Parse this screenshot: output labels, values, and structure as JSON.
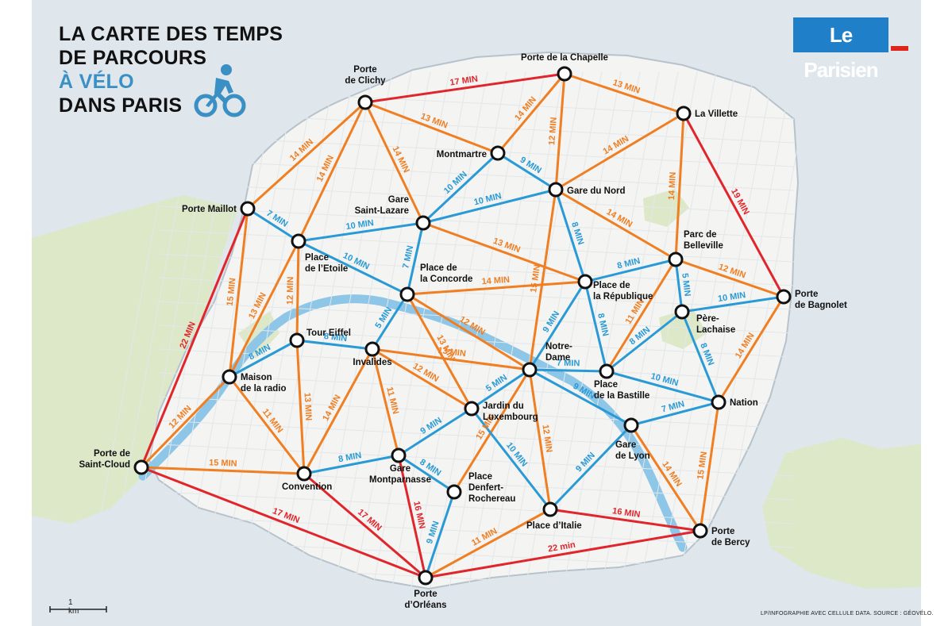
{
  "title": {
    "line1": "LA CARTE DES TEMPS",
    "line2": "DE PARCOURS",
    "line3": "À VÉLO",
    "line4": "DANS PARIS"
  },
  "logo_text": "Le Parisien",
  "scale_label": "1 km",
  "credit": "LP/INFOGRAPHIE AVEC CELLULE DATA. SOURCE : GÉOVÉLO.",
  "colors": {
    "red": "#e0262c",
    "orange": "#f07e22",
    "blue": "#2a9ad6",
    "water": "#8ec6e8",
    "land": "#f4f4f2",
    "park": "#dce8c8",
    "sea": "#dfe6ec"
  },
  "icons": [
    "cyclist-icon"
  ],
  "nodes": [
    {
      "id": "porte-de-clichy",
      "label": [
        "Porte",
        "de Clichy"
      ]
    },
    {
      "id": "porte-de-la-chapelle",
      "label": [
        "Porte de la Chapelle"
      ]
    },
    {
      "id": "la-villette",
      "label": [
        "La Villette"
      ]
    },
    {
      "id": "montmartre",
      "label": [
        "Montmartre"
      ]
    },
    {
      "id": "gare-du-nord",
      "label": [
        "Gare du Nord"
      ]
    },
    {
      "id": "porte-maillot",
      "label": [
        "Porte Maillot"
      ]
    },
    {
      "id": "gare-saint-lazare",
      "label": [
        "Gare",
        "Saint-Lazare"
      ]
    },
    {
      "id": "place-de-letoile",
      "label": [
        "Place",
        "de l’Etoile"
      ]
    },
    {
      "id": "place-de-la-concorde",
      "label": [
        "Place de",
        "la Concorde"
      ]
    },
    {
      "id": "parc-de-belleville",
      "label": [
        "Parc de",
        "Belleville"
      ]
    },
    {
      "id": "place-de-la-republique",
      "label": [
        "Place de",
        "la République"
      ]
    },
    {
      "id": "porte-de-bagnolet",
      "label": [
        "Porte",
        "de Bagnolet"
      ]
    },
    {
      "id": "pere-lachaise",
      "label": [
        "Père-",
        "Lachaise"
      ]
    },
    {
      "id": "tour-eiffel",
      "label": [
        "Tour Eiffel"
      ]
    },
    {
      "id": "invalides",
      "label": [
        "Invalides"
      ]
    },
    {
      "id": "notre-dame",
      "label": [
        "Notre-",
        "Dame"
      ]
    },
    {
      "id": "place-de-la-bastille",
      "label": [
        "Place",
        "de la Bastille"
      ]
    },
    {
      "id": "maison-de-la-radio",
      "label": [
        "Maison",
        "de la radio"
      ]
    },
    {
      "id": "nation",
      "label": [
        "Nation"
      ]
    },
    {
      "id": "jardin-du-luxembourg",
      "label": [
        "Jardin du",
        "Luxembourg"
      ]
    },
    {
      "id": "gare-de-lyon",
      "label": [
        "Gare",
        "de Lyon"
      ]
    },
    {
      "id": "porte-de-saint-cloud",
      "label": [
        "Porte de",
        "Saint-Cloud"
      ]
    },
    {
      "id": "gare-montparnasse",
      "label": [
        "Gare",
        "Montparnasse"
      ]
    },
    {
      "id": "convention",
      "label": [
        "Convention"
      ]
    },
    {
      "id": "place-denfert-rochereau",
      "label": [
        "Place",
        "Denfert-",
        "Rochereau"
      ]
    },
    {
      "id": "place-ditalie",
      "label": [
        "Place d’Italie"
      ]
    },
    {
      "id": "porte-de-bercy",
      "label": [
        "Porte",
        "de Bercy"
      ]
    },
    {
      "id": "porte-dorleans",
      "label": [
        "Porte",
        "d’Orléans"
      ]
    }
  ],
  "edges": [
    {
      "from": "porte-de-clichy",
      "to": "porte-de-la-chapelle",
      "color": "red",
      "label": "17 MIN"
    },
    {
      "from": "porte-de-la-chapelle",
      "to": "la-villette",
      "color": "orange",
      "label": "13 MIN"
    },
    {
      "from": "la-villette",
      "to": "porte-de-bagnolet",
      "color": "red",
      "label": "19 MIN"
    },
    {
      "from": "porte-maillot",
      "to": "porte-de-clichy",
      "color": "orange",
      "label": "14 MIN"
    },
    {
      "from": "porte-maillot",
      "to": "porte-de-saint-cloud",
      "color": "red",
      "label": "22 MIN"
    },
    {
      "from": "porte-de-saint-cloud",
      "to": "porte-dorleans",
      "color": "red",
      "label": "17 MIN"
    },
    {
      "from": "porte-dorleans",
      "to": "porte-de-bercy",
      "color": "red",
      "label": "22 min"
    },
    {
      "from": "porte-de-clichy",
      "to": "montmartre",
      "color": "orange",
      "label": "13 MIN"
    },
    {
      "from": "porte-de-la-chapelle",
      "to": "montmartre",
      "color": "orange",
      "label": "14 MIN"
    },
    {
      "from": "porte-de-la-chapelle",
      "to": "gare-du-nord",
      "color": "orange",
      "label": "12 MIN"
    },
    {
      "from": "la-villette",
      "to": "gare-du-nord",
      "color": "orange",
      "label": "14 MIN"
    },
    {
      "from": "la-villette",
      "to": "parc-de-belleville",
      "color": "orange",
      "label": "14 MIN"
    },
    {
      "from": "montmartre",
      "to": "gare-du-nord",
      "color": "blue",
      "label": "9 MIN"
    },
    {
      "from": "montmartre",
      "to": "gare-saint-lazare",
      "color": "blue",
      "label": "10 MIN"
    },
    {
      "from": "gare-saint-lazare",
      "to": "gare-du-nord",
      "color": "blue",
      "label": "10 MIN"
    },
    {
      "from": "porte-de-clichy",
      "to": "gare-saint-lazare",
      "color": "orange",
      "label": "14 MIN"
    },
    {
      "from": "porte-de-clichy",
      "to": "place-de-letoile",
      "color": "orange",
      "label": "14 MIN"
    },
    {
      "from": "porte-maillot",
      "to": "place-de-letoile",
      "color": "blue",
      "label": "7 MIN"
    },
    {
      "from": "place-de-letoile",
      "to": "gare-saint-lazare",
      "color": "blue",
      "label": "10 MIN"
    },
    {
      "from": "place-de-letoile",
      "to": "place-de-la-concorde",
      "color": "blue",
      "label": "10 MIN"
    },
    {
      "from": "gare-saint-lazare",
      "to": "place-de-la-concorde",
      "color": "blue",
      "label": "7 MIN"
    },
    {
      "from": "gare-saint-lazare",
      "to": "place-de-la-republique",
      "color": "orange",
      "label": "13 MIN"
    },
    {
      "from": "gare-du-nord",
      "to": "place-de-la-republique",
      "color": "blue",
      "label": "8 MIN"
    },
    {
      "from": "gare-du-nord",
      "to": "notre-dame",
      "color": "orange",
      "label": "15 MIN"
    },
    {
      "from": "gare-du-nord",
      "to": "parc-de-belleville",
      "color": "orange",
      "label": "14 MIN"
    },
    {
      "from": "parc-de-belleville",
      "to": "place-de-la-republique",
      "color": "blue",
      "label": "8 MIN"
    },
    {
      "from": "parc-de-belleville",
      "to": "porte-de-bagnolet",
      "color": "orange",
      "label": "12 MIN"
    },
    {
      "from": "parc-de-belleville",
      "to": "pere-lachaise",
      "color": "blue",
      "label": "5 MIN"
    },
    {
      "from": "pere-lachaise",
      "to": "porte-de-bagnolet",
      "color": "blue",
      "label": "10 MIN"
    },
    {
      "from": "place-de-la-concorde",
      "to": "place-de-la-republique",
      "color": "orange",
      "label": "14 MIN"
    },
    {
      "from": "place-de-la-republique",
      "to": "notre-dame",
      "color": "blue",
      "label": "9 MIN"
    },
    {
      "from": "place-de-la-republique",
      "to": "place-de-la-bastille",
      "color": "blue",
      "label": "8 MIN"
    },
    {
      "from": "parc-de-belleville",
      "to": "place-de-la-bastille",
      "color": "orange",
      "label": "11 MIN"
    },
    {
      "from": "pere-lachaise",
      "to": "place-de-la-bastille",
      "color": "blue",
      "label": "8 MIN"
    },
    {
      "from": "pere-lachaise",
      "to": "nation",
      "color": "blue",
      "label": "8 MIN"
    },
    {
      "from": "porte-de-bagnolet",
      "to": "nation",
      "color": "orange",
      "label": "14 MIN"
    },
    {
      "from": "place-de-letoile",
      "to": "tour-eiffel",
      "color": "orange",
      "label": "12 MIN"
    },
    {
      "from": "place-de-letoile",
      "to": "maison-de-la-radio",
      "color": "orange",
      "label": "13 MIN"
    },
    {
      "from": "porte-maillot",
      "to": "maison-de-la-radio",
      "color": "orange",
      "label": "15 MIN"
    },
    {
      "from": "tour-eiffel",
      "to": "maison-de-la-radio",
      "color": "blue",
      "label": "8 MIN"
    },
    {
      "from": "tour-eiffel",
      "to": "invalides",
      "color": "blue",
      "label": "8 MIN"
    },
    {
      "from": "place-de-la-concorde",
      "to": "invalides",
      "color": "blue",
      "label": "5 MIN"
    },
    {
      "from": "place-de-la-concorde",
      "to": "notre-dame",
      "color": "orange",
      "label": "12 MIN"
    },
    {
      "from": "place-de-la-concorde",
      "to": "jardin-du-luxembourg",
      "color": "orange",
      "label": "13 MIN"
    },
    {
      "from": "invalides",
      "to": "notre-dame",
      "color": "orange",
      "label": "13 MIN"
    },
    {
      "from": "invalides",
      "to": "jardin-du-luxembourg",
      "color": "orange",
      "label": "12 MIN"
    },
    {
      "from": "invalides",
      "to": "gare-montparnasse",
      "color": "orange",
      "label": "11 MIN"
    },
    {
      "from": "invalides",
      "to": "convention",
      "color": "orange",
      "label": "14 MIN"
    },
    {
      "from": "tour-eiffel",
      "to": "convention",
      "color": "orange",
      "label": "13 MIN"
    },
    {
      "from": "maison-de-la-radio",
      "to": "convention",
      "color": "orange",
      "label": "11 MIN"
    },
    {
      "from": "maison-de-la-radio",
      "to": "porte-de-saint-cloud",
      "color": "orange",
      "label": "12 MIN"
    },
    {
      "from": "porte-de-saint-cloud",
      "to": "convention",
      "color": "orange",
      "label": "15 MIN"
    },
    {
      "from": "notre-dame",
      "to": "jardin-du-luxembourg",
      "color": "blue",
      "label": "5 MIN"
    },
    {
      "from": "notre-dame",
      "to": "place-de-la-bastille",
      "color": "blue",
      "label": "7 MIN"
    },
    {
      "from": "notre-dame",
      "to": "gare-de-lyon",
      "color": "blue",
      "label": "9 MIN"
    },
    {
      "from": "place-de-la-bastille",
      "to": "nation",
      "color": "blue",
      "label": "10 MIN"
    },
    {
      "from": "gare-de-lyon",
      "to": "nation",
      "color": "blue",
      "label": "7 MIN"
    },
    {
      "from": "notre-dame",
      "to": "place-denfert-rochereau",
      "color": "orange",
      "label": "15 MIN"
    },
    {
      "from": "notre-dame",
      "to": "place-ditalie",
      "color": "orange",
      "label": "12 MIN"
    },
    {
      "from": "jardin-du-luxembourg",
      "to": "gare-montparnasse",
      "color": "blue",
      "label": "9 MIN"
    },
    {
      "from": "jardin-du-luxembourg",
      "to": "place-ditalie",
      "color": "blue",
      "label": "10 MIN"
    },
    {
      "from": "gare-montparnasse",
      "to": "convention",
      "color": "blue",
      "label": "8 MIN"
    },
    {
      "from": "gare-montparnasse",
      "to": "place-denfert-rochereau",
      "color": "blue",
      "label": "8 MIN"
    },
    {
      "from": "gare-montparnasse",
      "to": "porte-dorleans",
      "color": "red",
      "label": "16 MIN"
    },
    {
      "from": "convention",
      "to": "porte-dorleans",
      "color": "red",
      "label": "17 MIN"
    },
    {
      "from": "place-denfert-rochereau",
      "to": "porte-dorleans",
      "color": "blue",
      "label": "9 MIN"
    },
    {
      "from": "place-ditalie",
      "to": "porte-dorleans",
      "color": "orange",
      "label": "11 MIN"
    },
    {
      "from": "place-ditalie",
      "to": "gare-de-lyon",
      "color": "blue",
      "label": "9 MIN"
    },
    {
      "from": "place-ditalie",
      "to": "porte-de-bercy",
      "color": "red",
      "label": "16 MIN"
    },
    {
      "from": "gare-de-lyon",
      "to": "porte-de-bercy",
      "color": "orange",
      "label": "14 MIN"
    },
    {
      "from": "nation",
      "to": "porte-de-bercy",
      "color": "orange",
      "label": "15 MIN"
    }
  ]
}
